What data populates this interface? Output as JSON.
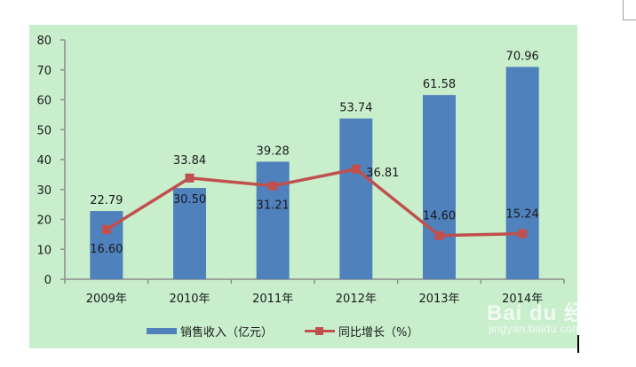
{
  "chart_data": {
    "type": "bar+line",
    "title": "",
    "xlabel": "",
    "ylabel": "",
    "ylim": [
      0,
      80
    ],
    "yticks": [
      0,
      10,
      20,
      30,
      40,
      50,
      60,
      70,
      80
    ],
    "categories": [
      "2009年",
      "2010年",
      "2011年",
      "2012年",
      "2013年",
      "2014年"
    ],
    "series": [
      {
        "name": "销售收入（亿元）",
        "type": "bar",
        "color": "#4f81bd",
        "values": [
          22.79,
          30.5,
          39.28,
          53.74,
          61.58,
          70.96
        ],
        "labels": [
          "22.79",
          "30.50",
          "39.28",
          "53.74",
          "61.58",
          "70.96"
        ]
      },
      {
        "name": "同比增长（%）",
        "type": "line",
        "color": "#c0504d",
        "values": [
          16.6,
          33.84,
          31.21,
          36.81,
          14.6,
          15.24
        ],
        "labels": [
          "16.60",
          "33.84",
          "31.21",
          "36.81",
          "14.60",
          "15.24"
        ]
      }
    ],
    "legend_position": "bottom",
    "grid": false,
    "background": "#c8eecc"
  },
  "legend": {
    "bar_label": "销售收入（亿元）",
    "line_label": "同比增长（%）"
  },
  "watermark": {
    "main": "Bai du 经验",
    "sub": "jingyan.baidu.com"
  }
}
